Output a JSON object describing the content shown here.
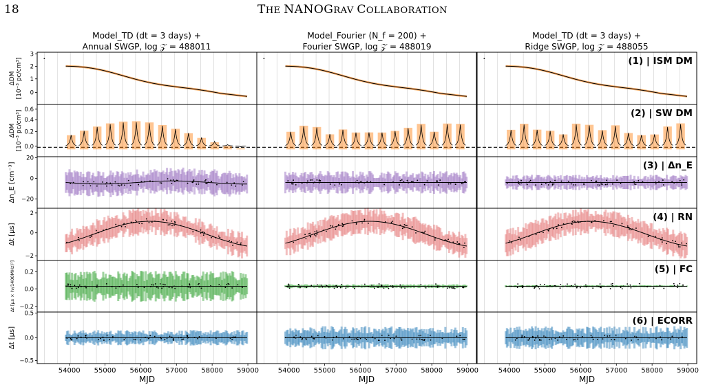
{
  "header": {
    "page_number": "18",
    "running_head_first": "T",
    "running_head_first_sc": "HE ",
    "running_head_word2_big": "NANOG",
    "running_head_word2_sc": "RAV ",
    "running_head_word3_big": "C",
    "running_head_word3_sc": "OLLABORATION"
  },
  "columns": [
    {
      "title_line1": "Model_TD (dt = 3 days) +",
      "title_line2": "Annual SWGP, log 𝒵 = 488011"
    },
    {
      "title_line1": "Model_Fourier (N_f = 200) +",
      "title_line2": "Fourier SWGP, log 𝒵 = 488019"
    },
    {
      "title_line1": "Model_TD (dt = 3 days) +",
      "title_line2": "Ridge SWGP, log 𝒵 = 488055"
    }
  ],
  "rows": [
    {
      "label": "(1) | ISM DM",
      "ylabel_line1": "ΔDM",
      "ylabel_line2": "[10⁻³ pc/cm³]",
      "ticks": [
        "3",
        "2",
        "1",
        "0"
      ],
      "color": "#ff7f0e"
    },
    {
      "label": "(2) | SW DM",
      "ylabel_line1": "ΔDM",
      "ylabel_line2": "[10⁻³ pc/cm³]",
      "ticks": [
        "0.6",
        "0.4",
        "0.2",
        "0.0"
      ],
      "color": "#ff7f0e"
    },
    {
      "label": "(3) | Δn_E",
      "ylabel_line1": "Δn_E [cm⁻³]",
      "ylabel_line2": "",
      "ticks": [
        "20",
        "0",
        "−20"
      ],
      "color": "#9467bd"
    },
    {
      "label": "(4) | RN",
      "ylabel_line1": "Δt [μs]",
      "ylabel_line2": "",
      "ticks": [
        "2",
        "0",
        "−2"
      ],
      "color": "#e57373"
    },
    {
      "label": "(5) | FC",
      "ylabel_line1": "Δt [μs × (ν/1400MHz)²]",
      "ylabel_line2": "",
      "ticks": [
        "0.2",
        "0.0",
        "−0.2"
      ],
      "color": "#2ca02c"
    },
    {
      "label": "(6) | ECORR",
      "ylabel_line1": "Δt [μs]",
      "ylabel_line2": "",
      "ticks": [
        "0.5",
        "0.0",
        "−0.5"
      ],
      "color": "#1f77b4"
    }
  ],
  "xaxis": {
    "label": "MJD",
    "ticks": [
      "54000",
      "55000",
      "56000",
      "57000",
      "58000",
      "59000"
    ]
  }
}
